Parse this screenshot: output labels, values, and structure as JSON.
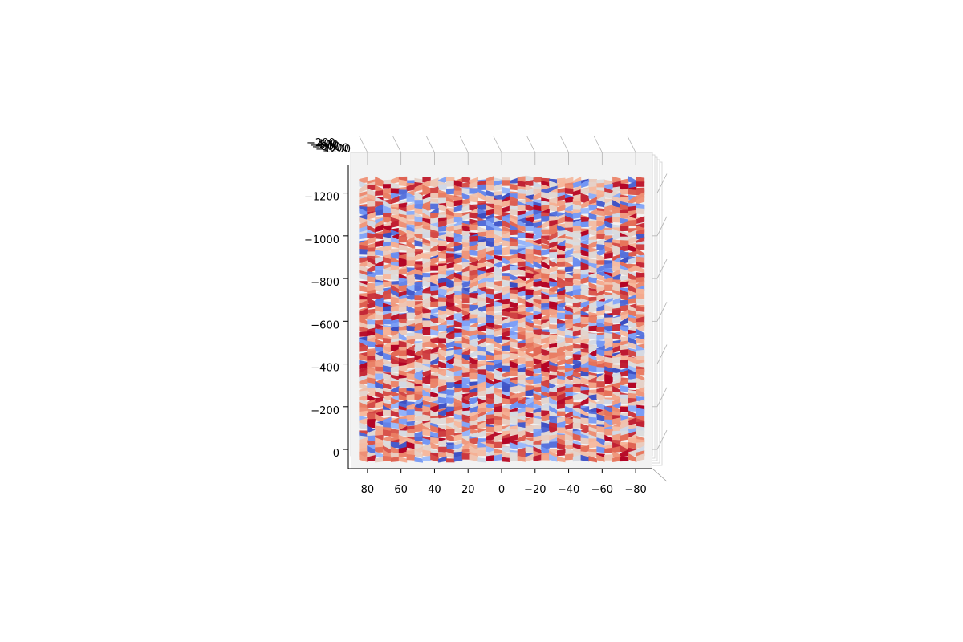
{
  "chart_data": {
    "type": "surface-3d",
    "view": "top-down",
    "colormap": "coolwarm",
    "colormap_stops": [
      "#3b4cc0",
      "#6f92f3",
      "#aac7fd",
      "#dddddd",
      "#f7b89c",
      "#e7745b",
      "#b40426"
    ],
    "pane_color": "#f2f2f2",
    "grid_color": "#b0b0b0",
    "grid": true,
    "x_ticks": [
      80,
      60,
      40,
      20,
      0,
      -20,
      -40,
      -60,
      -80
    ],
    "x_tick_labels": [
      "80",
      "60",
      "40",
      "20",
      "0",
      "−20",
      "−40",
      "−60",
      "−80"
    ],
    "xlim": [
      90,
      -90
    ],
    "y_ticks": [
      -1200,
      -1000,
      -800,
      -600,
      -400,
      -200,
      0
    ],
    "y_tick_labels": [
      "−1200",
      "−1000",
      "−800",
      "−600",
      "−400",
      "−200",
      "0"
    ],
    "ylim": [
      -1330,
      90
    ],
    "z_tick_labels": [
      "−200",
      "−400",
      "−600",
      "−800",
      "−1000",
      "−1200"
    ],
    "surface": {
      "x_range": [
        -85,
        85
      ],
      "y_range": [
        -1270,
        50
      ],
      "x_steps": 36,
      "y_steps": 70,
      "texture": "random-noise"
    },
    "title": "",
    "xlabel": "",
    "ylabel": "",
    "zlabel": ""
  }
}
